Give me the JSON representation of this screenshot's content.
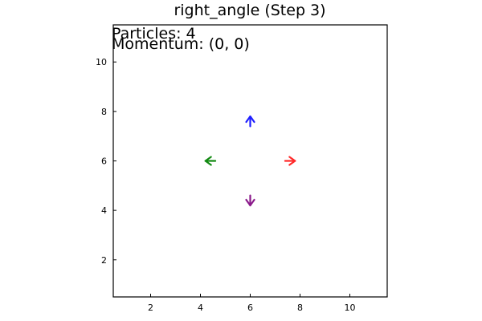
{
  "chart_data": {
    "type": "quiver",
    "title": "right_angle (Step 3)",
    "xlabel": "",
    "ylabel": "",
    "xlim": [
      0.5,
      11.5
    ],
    "ylim": [
      0.5,
      11.5
    ],
    "x_ticks": [
      2,
      4,
      6,
      8,
      10
    ],
    "y_ticks": [
      2,
      4,
      6,
      8,
      10
    ],
    "grid": false,
    "legend": "none",
    "annotations": [
      "Particles: 4",
      "Momentum: (0, 0)"
    ],
    "arrows": [
      {
        "x": 7.4,
        "y": 6.0,
        "u": 0.4,
        "v": 0.0,
        "color": "#ff2a2a"
      },
      {
        "x": 6.0,
        "y": 7.4,
        "u": 0.0,
        "v": 0.4,
        "color": "#1f1fff"
      },
      {
        "x": 4.6,
        "y": 6.0,
        "u": -0.4,
        "v": 0.0,
        "color": "#138a13"
      },
      {
        "x": 6.0,
        "y": 4.6,
        "u": 0.0,
        "v": -0.4,
        "color": "#8b1a8b"
      }
    ]
  }
}
